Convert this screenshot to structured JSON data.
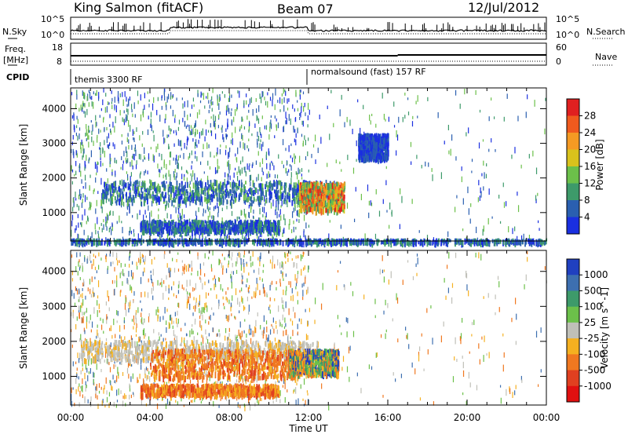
{
  "header": {
    "station": "King Salmon (fitACF)",
    "beam": "Beam 07",
    "date": "12/Jul/2012"
  },
  "top_panels": {
    "nsky_label": "N.Sky",
    "nsearch_label": "N.Search",
    "freq_label_1": "Freq.",
    "freq_label_2": "[MHz]",
    "nave_label": "Nave",
    "cpid_label": "CPID",
    "noise_left_ticks": [
      "10^5",
      "10^0"
    ],
    "noise_right_ticks": [
      "10^5",
      "10^0"
    ],
    "freq_left_ticks": [
      "18",
      "8"
    ],
    "nave_right_ticks": [
      "60",
      "0"
    ],
    "cpid_segments": [
      {
        "label": "themis 3300 RF",
        "start_hour": 0
      },
      {
        "label": "normalsound (fast) 157 RF",
        "start_hour": 12
      }
    ]
  },
  "chart_data": [
    {
      "type": "heatmap",
      "name": "power",
      "ylabel": "Slant Range [km]",
      "xlabel": "",
      "y_ticks": [
        1000,
        2000,
        3000,
        4000
      ],
      "ylim": [
        180,
        4600
      ],
      "xlim": [
        0,
        24
      ],
      "colorbar": {
        "label": "Power [dB]",
        "ticks": [
          "28",
          "24",
          "20",
          "16",
          "12",
          "8",
          "4"
        ],
        "colors": [
          "#e02020",
          "#f05a1e",
          "#f59a23",
          "#d9c21c",
          "#6cc04a",
          "#3d9a6a",
          "#2a5fb0",
          "#1a2fe0"
        ]
      },
      "features": [
        {
          "t0": 1.5,
          "t1": 13.5,
          "r0": 1350,
          "r1": 1950,
          "level": "high"
        },
        {
          "t0": 3.5,
          "t1": 10.5,
          "r0": 500,
          "r1": 800,
          "level": "mid"
        },
        {
          "t0": 11.5,
          "t1": 13.8,
          "r0": 1100,
          "r1": 1900,
          "level": "very-high"
        },
        {
          "t0": 14.5,
          "t1": 16.0,
          "r0": 2600,
          "r1": 3300,
          "level": "low"
        },
        {
          "t0": 0,
          "t1": 24,
          "r0": 180,
          "r1": 260,
          "level": "ground"
        }
      ]
    },
    {
      "type": "heatmap",
      "name": "velocity",
      "ylabel": "Slant Range [km]",
      "xlabel": "Time UT",
      "x_ticks": [
        "00:00",
        "04:00",
        "08:00",
        "12:00",
        "16:00",
        "20:00",
        "00:00"
      ],
      "y_ticks": [
        1000,
        2000,
        3000,
        4000
      ],
      "ylim": [
        180,
        4600
      ],
      "xlim": [
        0,
        24
      ],
      "colorbar": {
        "label": "Velocity [m s^-1]",
        "ticks": [
          "1000",
          "500",
          "100",
          "25",
          "-25",
          "-100",
          "-500",
          "-1000"
        ],
        "colors": [
          "#2040c0",
          "#3d6fb0",
          "#3d9a6a",
          "#6cc04a",
          "#c0c0b8",
          "#f5b020",
          "#f07820",
          "#e04020",
          "#e01010"
        ]
      },
      "features": [
        {
          "t0": 0.5,
          "t1": 12.5,
          "r0": 1500,
          "r1": 2050,
          "level": "ground-gray"
        },
        {
          "t0": 4.0,
          "t1": 11.5,
          "r0": 1000,
          "r1": 1800,
          "level": "orange"
        },
        {
          "t0": 11.0,
          "t1": 13.5,
          "r0": 1100,
          "r1": 1800,
          "level": "mixed-green"
        },
        {
          "t0": 3.5,
          "t1": 10.5,
          "r0": 500,
          "r1": 800,
          "level": "orange"
        }
      ]
    }
  ]
}
